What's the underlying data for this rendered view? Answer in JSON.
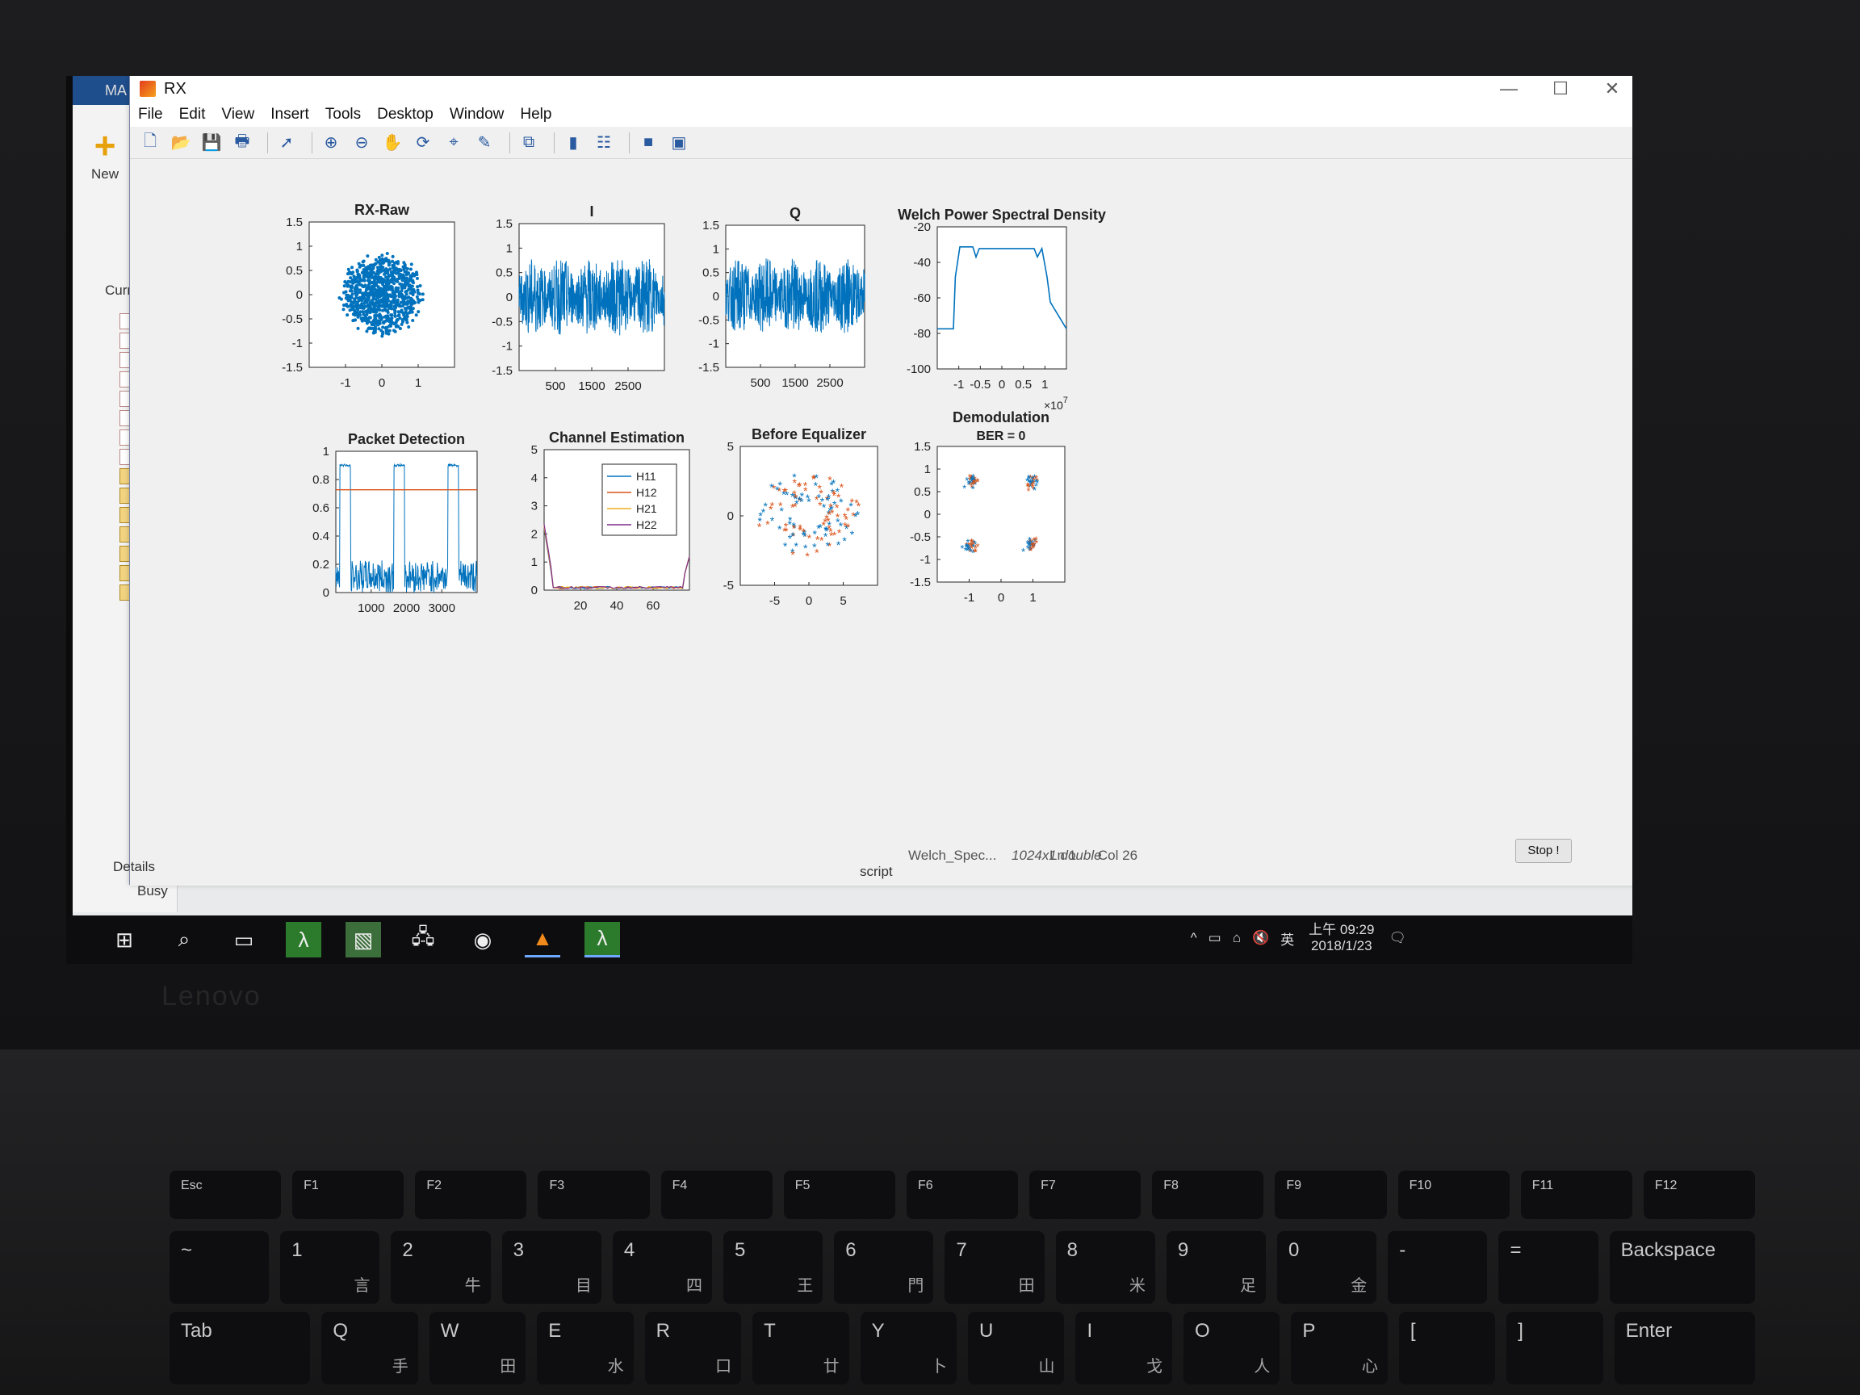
{
  "figure": {
    "title": "RX",
    "menu": [
      "File",
      "Edit",
      "View",
      "Insert",
      "Tools",
      "Desktop",
      "Window",
      "Help"
    ],
    "stop_button": "Stop !"
  },
  "matlab": {
    "tab": "MA",
    "new_label": "New",
    "current_folder_label": "Curre",
    "details_label": "Details",
    "busy_label": "Busy",
    "script_label": "script",
    "workspace_var": "Welch_Spec...",
    "workspace_val": "1024x1 double",
    "ln_label": "Ln",
    "ln_value": "1",
    "col_label": "Col",
    "col_value": "26"
  },
  "taskbar": {
    "time": "上午 09:29",
    "date": "2018/1/23",
    "ime": "英"
  },
  "colors": {
    "series_blue": "#0072BD",
    "series_orange": "#D95319"
  },
  "chart_data": [
    {
      "type": "scatter",
      "title": "RX-Raw",
      "xticks": [
        "-1",
        "0",
        "1"
      ],
      "yticks": [
        "1.5",
        "1",
        "0.5",
        "0",
        "-0.5",
        "-1",
        "-1.5"
      ],
      "xlim": [
        -1.5,
        1.5
      ],
      "ylim": [
        -1.5,
        1.5
      ],
      "cloud_center": [
        0,
        0
      ],
      "cloud_radius": 0.9
    },
    {
      "type": "line",
      "title": "I",
      "xticks": [
        "500",
        "1500",
        "2500"
      ],
      "yticks": [
        "1.5",
        "1",
        "0.5",
        "0",
        "-0.5",
        "-1",
        "-1.5"
      ],
      "xlim": [
        0,
        3000
      ],
      "ylim": [
        -1.5,
        1.5
      ],
      "amplitude": 0.8
    },
    {
      "type": "line",
      "title": "Q",
      "xticks": [
        "500",
        "1500",
        "2500"
      ],
      "yticks": [
        "1.5",
        "1",
        "0.5",
        "0",
        "-0.5",
        "-1",
        "-1.5"
      ],
      "xlim": [
        0,
        3000
      ],
      "ylim": [
        -1.5,
        1.5
      ],
      "amplitude": 0.8
    },
    {
      "type": "line",
      "title": "Welch Power Spectral Density",
      "xticks": [
        "-1",
        "-0.5",
        "0",
        "0.5",
        "1"
      ],
      "yticks": [
        "-20",
        "-40",
        "-60",
        "-80",
        "-100"
      ],
      "x_multiplier": "×10",
      "x_exponent": "7",
      "xlim": [
        -10000000.0,
        10000000.0
      ],
      "ylim": [
        -100,
        -15
      ],
      "x": [
        -1.0,
        -0.75,
        -0.72,
        -0.65,
        -0.45,
        -0.4,
        -0.35,
        0.5,
        0.55,
        0.62,
        0.7,
        0.75,
        1.0
      ],
      "y": [
        -76,
        -76,
        -45,
        -27,
        -27,
        -33,
        -28,
        -28,
        -33,
        -28,
        -45,
        -60,
        -76
      ]
    },
    {
      "type": "line",
      "title": "Packet Detection",
      "xticks": [
        "1000",
        "2000",
        "3000"
      ],
      "yticks": [
        "1",
        "0.8",
        "0.6",
        "0.4",
        "0.2",
        "0"
      ],
      "xlim": [
        0,
        3400
      ],
      "ylim": [
        0,
        1.1
      ],
      "threshold": 0.8,
      "pulses": [
        [
          100,
          350
        ],
        [
          1400,
          1650
        ],
        [
          2700,
          2950
        ]
      ]
    },
    {
      "type": "line",
      "title": "Channel Estimation",
      "xticks": [
        "20",
        "40",
        "60"
      ],
      "yticks": [
        "5",
        "4",
        "3",
        "2",
        "1",
        "0"
      ],
      "xlim": [
        0,
        64
      ],
      "ylim": [
        0,
        5
      ],
      "legend": [
        "H11",
        "H12",
        "H21",
        "H22"
      ],
      "legend_position": "top-right"
    },
    {
      "type": "scatter",
      "title": "Before Equalizer",
      "xticks": [
        "-5",
        "0",
        "5"
      ],
      "yticks": [
        "5",
        "0",
        "-5"
      ],
      "xlim": [
        -8,
        8
      ],
      "ylim": [
        -8,
        8
      ]
    },
    {
      "type": "scatter",
      "title": "Demodulation",
      "subtitle": "BER = 0",
      "xticks": [
        "-1",
        "0",
        "1"
      ],
      "yticks": [
        "1.5",
        "1",
        "0.5",
        "0",
        "-0.5",
        "-1",
        "-1.5"
      ],
      "xlim": [
        -1.5,
        1.5
      ],
      "ylim": [
        -1.5,
        1.5
      ],
      "clusters": [
        [
          -0.7,
          0.7
        ],
        [
          0.7,
          0.7
        ],
        [
          -0.7,
          -0.7
        ],
        [
          0.7,
          -0.7
        ]
      ]
    }
  ]
}
